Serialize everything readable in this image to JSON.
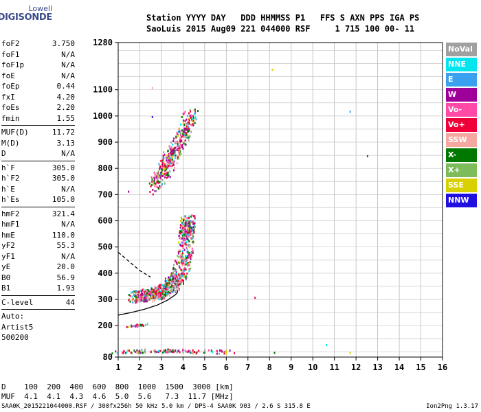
{
  "logo": {
    "line1": "Lowell",
    "line2": "DIGISONDE"
  },
  "header": {
    "line1": "Station YYYY DAY   DDD HHMMSS P1   FFS S AXN PPS IGA PS",
    "line2": "SaoLuis 2015 Aug09 221 044000 RSF     1 715 100 00- 11"
  },
  "params": {
    "group1": [
      {
        "name": "foF2",
        "value": "3.750"
      },
      {
        "name": "foF1",
        "value": "N/A"
      },
      {
        "name": "foF1p",
        "value": "N/A"
      },
      {
        "name": "foE",
        "value": "N/A"
      },
      {
        "name": "foEp",
        "value": "0.44"
      },
      {
        "name": "fxI",
        "value": "4.20"
      },
      {
        "name": "foEs",
        "value": "2.20"
      },
      {
        "name": "fmin",
        "value": "1.55"
      }
    ],
    "group2": [
      {
        "name": "MUF(D)",
        "value": "11.72"
      },
      {
        "name": "M(D)",
        "value": "3.13"
      },
      {
        "name": "D",
        "value": "N/A"
      }
    ],
    "group3": [
      {
        "name": "h`F",
        "value": "305.0"
      },
      {
        "name": "h`F2",
        "value": "305.0"
      },
      {
        "name": "h`E",
        "value": "N/A"
      },
      {
        "name": "h`Es",
        "value": "105.0"
      }
    ],
    "group4": [
      {
        "name": "hmF2",
        "value": "321.4"
      },
      {
        "name": "hmF1",
        "value": "N/A"
      },
      {
        "name": "hmE",
        "value": "110.0"
      },
      {
        "name": "yF2",
        "value": "55.3"
      },
      {
        "name": "yF1",
        "value": "N/A"
      },
      {
        "name": "yE",
        "value": "20.0"
      },
      {
        "name": "B0",
        "value": "56.9"
      },
      {
        "name": "B1",
        "value": "1.93"
      }
    ],
    "clevel": {
      "name": "C-level",
      "value": "44"
    },
    "auto": [
      "Auto:",
      "Artist5",
      "500200"
    ]
  },
  "legend": [
    {
      "label": "NoVal",
      "color": "#a0a0a0"
    },
    {
      "label": "NNE",
      "color": "#00e5ee"
    },
    {
      "label": "E",
      "color": "#3aa0f0"
    },
    {
      "label": "W",
      "color": "#a0009a"
    },
    {
      "label": "Vo-",
      "color": "#ff4aa8"
    },
    {
      "label": "Vo+",
      "color": "#f00038"
    },
    {
      "label": "SSW",
      "color": "#f4a8a0"
    },
    {
      "label": "X-",
      "color": "#007800"
    },
    {
      "label": "X+",
      "color": "#7cbc5a"
    },
    {
      "label": "SSE",
      "color": "#d8d000"
    },
    {
      "label": "NNW",
      "color": "#2010e0"
    }
  ],
  "dmuf": {
    "line1": "D    100  200  400  600  800  1000  1500  3000 [km]",
    "line2": "MUF  4.1  4.1  4.3  4.6  5.0  5.6   7.3  11.7 [MHz]"
  },
  "footer": "SAA0K_2015221044000.RSF / 300fx256h 50 kHz 5.0 km / DPS-4 SAA0K 903 / 2.6 S 315.8 E",
  "version": "Ion2Png 1.3.17",
  "chart_data": {
    "type": "scatter",
    "x": {
      "min": 1,
      "max": 16,
      "ticks": [
        1,
        2,
        3,
        4,
        5,
        6,
        7,
        8,
        9,
        10,
        11,
        12,
        13,
        14,
        15,
        16
      ]
    },
    "y": {
      "min": 80,
      "max": 1280,
      "ticks": [
        80,
        200,
        300,
        400,
        500,
        600,
        700,
        800,
        900,
        1000,
        1100,
        1280
      ]
    },
    "grid": true,
    "series": [
      {
        "values": [
          {
            "f": 1.75,
            "h": 300
          },
          {
            "f": 2.2,
            "h": 308
          },
          {
            "f": 2.8,
            "h": 318
          },
          {
            "f": 3.3,
            "h": 335
          },
          {
            "f": 3.7,
            "h": 375
          },
          {
            "f": 4.05,
            "h": 450
          },
          {
            "f": 4.15,
            "h": 550
          },
          {
            "f": 4.2,
            "h": 600
          }
        ]
      },
      {
        "values": [
          {
            "f": 2.6,
            "h": 720
          },
          {
            "f": 3.1,
            "h": 790
          },
          {
            "f": 3.6,
            "h": 860
          },
          {
            "f": 4.0,
            "h": 920
          },
          {
            "f": 4.4,
            "h": 1000
          }
        ]
      },
      {
        "values": [
          {
            "f": 1.6,
            "h": 200
          },
          {
            "f": 2.1,
            "h": 205
          }
        ]
      },
      {
        "values": [
          {
            "f": 1.4,
            "h": 100
          },
          {
            "f": 3.0,
            "h": 105
          },
          {
            "f": 5.6,
            "h": 100
          }
        ]
      }
    ],
    "profile_curve": [
      {
        "f": 1.0,
        "h": 240
      },
      {
        "f": 1.6,
        "h": 250
      },
      {
        "f": 2.2,
        "h": 262
      },
      {
        "f": 2.8,
        "h": 278
      },
      {
        "f": 3.3,
        "h": 298
      },
      {
        "f": 3.65,
        "h": 318
      },
      {
        "f": 3.75,
        "h": 328
      },
      {
        "f": 3.72,
        "h": 338
      }
    ],
    "dashed_curve": [
      {
        "f": 1.0,
        "h": 480
      },
      {
        "f": 1.5,
        "h": 445
      },
      {
        "f": 2.0,
        "h": 410
      },
      {
        "f": 2.5,
        "h": 385
      }
    ],
    "isolated_points": [
      {
        "f": 8.1,
        "h": 1180,
        "color": "#d8d000"
      },
      {
        "f": 11.7,
        "h": 1020,
        "color": "#3aa0f0"
      },
      {
        "f": 12.5,
        "h": 850,
        "color": "#a0009a"
      },
      {
        "f": 7.3,
        "h": 310,
        "color": "#f00038"
      },
      {
        "f": 10.6,
        "h": 130,
        "color": "#00e5ee"
      },
      {
        "f": 8.2,
        "h": 100,
        "color": "#007800"
      },
      {
        "f": 11.7,
        "h": 100,
        "color": "#d8d000"
      },
      {
        "f": 1.45,
        "h": 715,
        "color": "#a0009a"
      },
      {
        "f": 2.55,
        "h": 1110,
        "color": "#f4a8a0"
      },
      {
        "f": 2.55,
        "h": 1000,
        "color": "#2010e0"
      }
    ]
  }
}
